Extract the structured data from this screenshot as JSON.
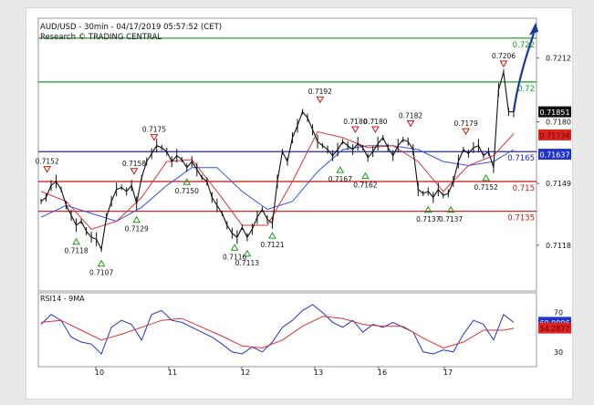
{
  "chart_data": [
    {
      "type": "line",
      "title": "AUD/USD - 30min - 04/17/2019 05:57:52 (CET)",
      "subtitle": "Research © TRADING CENTRAL",
      "x_labels": [
        "10",
        "11",
        "12",
        "13",
        "16",
        "17"
      ],
      "y_ticks": [
        0.7118,
        0.7149,
        0.718,
        0.7212
      ],
      "ylim": [
        0.7095,
        0.7232
      ],
      "current_price": 0.71851,
      "price_tags": [
        "0.71851",
        "0.71637",
        "0.71734"
      ],
      "levels": [
        {
          "label": "0.722",
          "value": 0.7222,
          "color": "#1a9a1a"
        },
        {
          "label": "0.72",
          "value": 0.72,
          "color": "#1a9a1a"
        },
        {
          "label": "0.7165",
          "value": 0.7165,
          "color": "#2222cc"
        },
        {
          "label": "0.715",
          "value": 0.715,
          "color": "#cc1111"
        },
        {
          "label": "0.7135",
          "value": 0.7135,
          "color": "#cc1111"
        }
      ],
      "peaks": [
        {
          "label": "0.7152",
          "x": 0.12,
          "value": 0.7152
        },
        {
          "label": "0.7158",
          "x": 1.85,
          "value": 0.7151
        },
        {
          "label": "0.7175",
          "x": 2.25,
          "value": 0.7168
        },
        {
          "label": "0.7192",
          "x": 5.55,
          "value": 0.7187
        },
        {
          "label": "0.7180",
          "x": 6.25,
          "value": 0.7172
        },
        {
          "label": "0.7180",
          "x": 6.65,
          "value": 0.7172
        },
        {
          "label": "0.7182",
          "x": 7.35,
          "value": 0.7175
        },
        {
          "label": "0.7179",
          "x": 8.45,
          "value": 0.7171
        },
        {
          "label": "0.7206",
          "x": 9.2,
          "value": 0.7205
        }
      ],
      "troughs": [
        {
          "label": "0.7118",
          "x": 0.7,
          "value": 0.7124
        },
        {
          "label": "0.7107",
          "x": 1.2,
          "value": 0.7113
        },
        {
          "label": "0.7129",
          "x": 1.9,
          "value": 0.7135
        },
        {
          "label": "0.7150",
          "x": 2.9,
          "value": 0.7154
        },
        {
          "label": "0.7116",
          "x": 3.85,
          "value": 0.7121
        },
        {
          "label": "0.7113",
          "x": 4.1,
          "value": 0.7118
        },
        {
          "label": "0.7121",
          "x": 4.6,
          "value": 0.7127
        },
        {
          "label": "0.7167",
          "x": 5.95,
          "value": 0.716
        },
        {
          "label": "0.7162",
          "x": 6.45,
          "value": 0.7157
        },
        {
          "label": "0.7137",
          "x": 7.7,
          "value": 0.714
        },
        {
          "label": "0.7137",
          "x": 8.15,
          "value": 0.714
        },
        {
          "label": "0.7152",
          "x": 8.85,
          "value": 0.7156
        }
      ],
      "price_series": {
        "x": [
          0,
          0.1,
          0.2,
          0.3,
          0.4,
          0.5,
          0.6,
          0.7,
          0.8,
          0.9,
          1.0,
          1.1,
          1.2,
          1.3,
          1.4,
          1.5,
          1.6,
          1.7,
          1.8,
          1.9,
          2.0,
          2.1,
          2.2,
          2.3,
          2.4,
          2.5,
          2.6,
          2.7,
          2.8,
          2.9,
          3.0,
          3.1,
          3.2,
          3.3,
          3.4,
          3.5,
          3.6,
          3.7,
          3.8,
          3.9,
          4.0,
          4.1,
          4.2,
          4.3,
          4.4,
          4.5,
          4.6,
          4.7,
          4.8,
          4.9,
          5.0,
          5.1,
          5.2,
          5.3,
          5.4,
          5.5,
          5.6,
          5.7,
          5.8,
          5.9,
          6.0,
          6.1,
          6.2,
          6.3,
          6.4,
          6.5,
          6.6,
          6.7,
          6.8,
          6.9,
          7.0,
          7.1,
          7.2,
          7.3,
          7.4,
          7.5,
          7.6,
          7.7,
          7.8,
          7.9,
          8.0,
          8.1,
          8.2,
          8.3,
          8.4,
          8.5,
          8.6,
          8.7,
          8.8,
          8.9,
          9.0,
          9.1,
          9.2,
          9.3,
          9.4
        ],
        "values": [
          0.714,
          0.7142,
          0.7148,
          0.715,
          0.7146,
          0.7138,
          0.7133,
          0.7128,
          0.713,
          0.7125,
          0.7122,
          0.7121,
          0.7116,
          0.7132,
          0.714,
          0.7146,
          0.7147,
          0.7145,
          0.7148,
          0.7139,
          0.7152,
          0.716,
          0.7164,
          0.7168,
          0.7167,
          0.7165,
          0.716,
          0.7163,
          0.7161,
          0.7157,
          0.716,
          0.7156,
          0.7152,
          0.715,
          0.7142,
          0.7138,
          0.7134,
          0.7128,
          0.7124,
          0.7122,
          0.7127,
          0.7122,
          0.7126,
          0.7132,
          0.7136,
          0.7131,
          0.7129,
          0.715,
          0.7165,
          0.716,
          0.7172,
          0.7178,
          0.7185,
          0.7182,
          0.7176,
          0.717,
          0.7168,
          0.7166,
          0.7163,
          0.7166,
          0.717,
          0.7168,
          0.7166,
          0.7169,
          0.7167,
          0.7162,
          0.7165,
          0.7169,
          0.7172,
          0.7167,
          0.7163,
          0.7168,
          0.7171,
          0.717,
          0.7166,
          0.7146,
          0.7144,
          0.7145,
          0.7142,
          0.7146,
          0.7143,
          0.7144,
          0.715,
          0.716,
          0.7166,
          0.7164,
          0.7167,
          0.7168,
          0.7163,
          0.7165,
          0.7157,
          0.7196,
          0.7205,
          0.7185,
          0.7185
        ]
      },
      "ma_fast": {
        "x": [
          0,
          0.5,
          1.0,
          1.5,
          2.0,
          2.5,
          3.0,
          3.5,
          4.0,
          4.5,
          5.0,
          5.5,
          6.0,
          6.5,
          7.0,
          7.5,
          8.0,
          8.5,
          9.0,
          9.4
        ],
        "values": [
          0.7145,
          0.714,
          0.7126,
          0.713,
          0.7142,
          0.716,
          0.7161,
          0.7145,
          0.7128,
          0.7128,
          0.715,
          0.7175,
          0.7172,
          0.7167,
          0.7168,
          0.716,
          0.7145,
          0.7158,
          0.7163,
          0.7174
        ]
      },
      "ma_slow": {
        "x": [
          0,
          0.5,
          1.0,
          1.5,
          2.0,
          2.5,
          3.0,
          3.5,
          4.0,
          4.5,
          5.0,
          5.5,
          6.0,
          6.5,
          7.0,
          7.5,
          8.0,
          8.5,
          9.0,
          9.4
        ],
        "values": [
          0.7132,
          0.7138,
          0.7134,
          0.713,
          0.7137,
          0.7148,
          0.7157,
          0.7157,
          0.7145,
          0.7136,
          0.714,
          0.7155,
          0.7166,
          0.7168,
          0.7168,
          0.7166,
          0.716,
          0.7158,
          0.716,
          0.7166
        ]
      },
      "forecast": {
        "x": [
          9.4,
          9.8
        ],
        "values": [
          0.7185,
          0.7228
        ]
      }
    },
    {
      "type": "line",
      "title": "RSI14 - 9MA",
      "y_ticks": [
        70,
        30
      ],
      "ylim": [
        15,
        90
      ],
      "rsi_value": "60.0096",
      "ma_value": "54.2877",
      "rsi": {
        "x": [
          0,
          0.2,
          0.4,
          0.6,
          0.8,
          1.0,
          1.2,
          1.4,
          1.6,
          1.8,
          2.0,
          2.2,
          2.4,
          2.6,
          2.8,
          3.0,
          3.2,
          3.4,
          3.6,
          3.8,
          4.0,
          4.2,
          4.4,
          4.6,
          4.8,
          5.0,
          5.2,
          5.4,
          5.6,
          5.8,
          6.0,
          6.2,
          6.4,
          6.6,
          6.8,
          7.0,
          7.2,
          7.4,
          7.6,
          7.8,
          8.0,
          8.2,
          8.4,
          8.6,
          8.8,
          9.0,
          9.2,
          9.4
        ],
        "values": [
          58,
          68,
          62,
          45,
          40,
          38,
          28,
          55,
          62,
          58,
          42,
          68,
          72,
          62,
          60,
          55,
          50,
          45,
          38,
          30,
          28,
          35,
          30,
          40,
          55,
          62,
          72,
          78,
          70,
          60,
          55,
          62,
          50,
          58,
          55,
          60,
          55,
          50,
          30,
          28,
          32,
          30,
          48,
          62,
          58,
          42,
          68,
          60
        ]
      },
      "ma": {
        "x": [
          0,
          0.4,
          0.8,
          1.2,
          1.6,
          2.0,
          2.4,
          2.8,
          3.2,
          3.6,
          4.0,
          4.4,
          4.8,
          5.2,
          5.6,
          6.0,
          6.4,
          6.8,
          7.2,
          7.6,
          8.0,
          8.4,
          8.8,
          9.2,
          9.4
        ],
        "values": [
          60,
          62,
          52,
          42,
          48,
          55,
          62,
          64,
          55,
          46,
          36,
          34,
          42,
          56,
          66,
          64,
          58,
          56,
          56,
          44,
          34,
          40,
          52,
          52,
          54
        ]
      }
    }
  ]
}
